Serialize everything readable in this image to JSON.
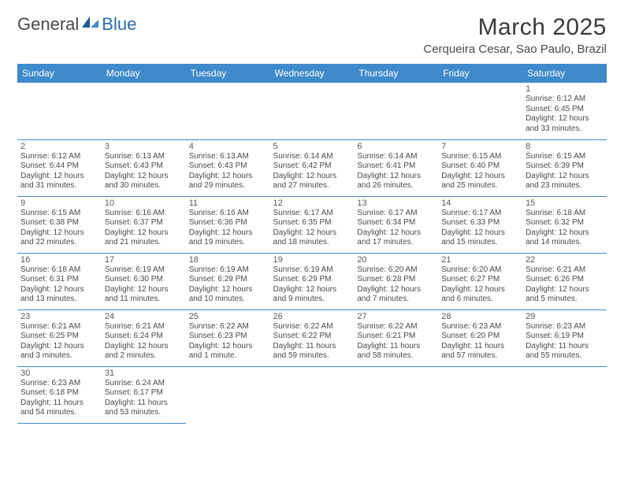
{
  "logo": {
    "general": "General",
    "blue": "Blue"
  },
  "title": "March 2025",
  "location": "Cerqueira Cesar, Sao Paulo, Brazil",
  "colors": {
    "header_bg": "#3f8acb",
    "header_text": "#ffffff",
    "border": "#3f8acb",
    "page_bg": "#ffffff",
    "body_text": "#4a4a4a"
  },
  "typography": {
    "title_fontsize": 30,
    "location_fontsize": 15,
    "header_fontsize": 12,
    "daynum_fontsize": 11,
    "detail_fontsize": 10
  },
  "weekdays": [
    "Sunday",
    "Monday",
    "Tuesday",
    "Wednesday",
    "Thursday",
    "Friday",
    "Saturday"
  ],
  "weeks": [
    [
      null,
      null,
      null,
      null,
      null,
      null,
      {
        "n": "1",
        "sunrise": "Sunrise: 6:12 AM",
        "sunset": "Sunset: 6:45 PM",
        "daylight": "Daylight: 12 hours and 33 minutes."
      }
    ],
    [
      {
        "n": "2",
        "sunrise": "Sunrise: 6:12 AM",
        "sunset": "Sunset: 6:44 PM",
        "daylight": "Daylight: 12 hours and 31 minutes."
      },
      {
        "n": "3",
        "sunrise": "Sunrise: 6:13 AM",
        "sunset": "Sunset: 6:43 PM",
        "daylight": "Daylight: 12 hours and 30 minutes."
      },
      {
        "n": "4",
        "sunrise": "Sunrise: 6:13 AM",
        "sunset": "Sunset: 6:43 PM",
        "daylight": "Daylight: 12 hours and 29 minutes."
      },
      {
        "n": "5",
        "sunrise": "Sunrise: 6:14 AM",
        "sunset": "Sunset: 6:42 PM",
        "daylight": "Daylight: 12 hours and 27 minutes."
      },
      {
        "n": "6",
        "sunrise": "Sunrise: 6:14 AM",
        "sunset": "Sunset: 6:41 PM",
        "daylight": "Daylight: 12 hours and 26 minutes."
      },
      {
        "n": "7",
        "sunrise": "Sunrise: 6:15 AM",
        "sunset": "Sunset: 6:40 PM",
        "daylight": "Daylight: 12 hours and 25 minutes."
      },
      {
        "n": "8",
        "sunrise": "Sunrise: 6:15 AM",
        "sunset": "Sunset: 6:39 PM",
        "daylight": "Daylight: 12 hours and 23 minutes."
      }
    ],
    [
      {
        "n": "9",
        "sunrise": "Sunrise: 6:15 AM",
        "sunset": "Sunset: 6:38 PM",
        "daylight": "Daylight: 12 hours and 22 minutes."
      },
      {
        "n": "10",
        "sunrise": "Sunrise: 6:16 AM",
        "sunset": "Sunset: 6:37 PM",
        "daylight": "Daylight: 12 hours and 21 minutes."
      },
      {
        "n": "11",
        "sunrise": "Sunrise: 6:16 AM",
        "sunset": "Sunset: 6:36 PM",
        "daylight": "Daylight: 12 hours and 19 minutes."
      },
      {
        "n": "12",
        "sunrise": "Sunrise: 6:17 AM",
        "sunset": "Sunset: 6:35 PM",
        "daylight": "Daylight: 12 hours and 18 minutes."
      },
      {
        "n": "13",
        "sunrise": "Sunrise: 6:17 AM",
        "sunset": "Sunset: 6:34 PM",
        "daylight": "Daylight: 12 hours and 17 minutes."
      },
      {
        "n": "14",
        "sunrise": "Sunrise: 6:17 AM",
        "sunset": "Sunset: 6:33 PM",
        "daylight": "Daylight: 12 hours and 15 minutes."
      },
      {
        "n": "15",
        "sunrise": "Sunrise: 6:18 AM",
        "sunset": "Sunset: 6:32 PM",
        "daylight": "Daylight: 12 hours and 14 minutes."
      }
    ],
    [
      {
        "n": "16",
        "sunrise": "Sunrise: 6:18 AM",
        "sunset": "Sunset: 6:31 PM",
        "daylight": "Daylight: 12 hours and 13 minutes."
      },
      {
        "n": "17",
        "sunrise": "Sunrise: 6:19 AM",
        "sunset": "Sunset: 6:30 PM",
        "daylight": "Daylight: 12 hours and 11 minutes."
      },
      {
        "n": "18",
        "sunrise": "Sunrise: 6:19 AM",
        "sunset": "Sunset: 6:29 PM",
        "daylight": "Daylight: 12 hours and 10 minutes."
      },
      {
        "n": "19",
        "sunrise": "Sunrise: 6:19 AM",
        "sunset": "Sunset: 6:29 PM",
        "daylight": "Daylight: 12 hours and 9 minutes."
      },
      {
        "n": "20",
        "sunrise": "Sunrise: 6:20 AM",
        "sunset": "Sunset: 6:28 PM",
        "daylight": "Daylight: 12 hours and 7 minutes."
      },
      {
        "n": "21",
        "sunrise": "Sunrise: 6:20 AM",
        "sunset": "Sunset: 6:27 PM",
        "daylight": "Daylight: 12 hours and 6 minutes."
      },
      {
        "n": "22",
        "sunrise": "Sunrise: 6:21 AM",
        "sunset": "Sunset: 6:26 PM",
        "daylight": "Daylight: 12 hours and 5 minutes."
      }
    ],
    [
      {
        "n": "23",
        "sunrise": "Sunrise: 6:21 AM",
        "sunset": "Sunset: 6:25 PM",
        "daylight": "Daylight: 12 hours and 3 minutes."
      },
      {
        "n": "24",
        "sunrise": "Sunrise: 6:21 AM",
        "sunset": "Sunset: 6:24 PM",
        "daylight": "Daylight: 12 hours and 2 minutes."
      },
      {
        "n": "25",
        "sunrise": "Sunrise: 6:22 AM",
        "sunset": "Sunset: 6:23 PM",
        "daylight": "Daylight: 12 hours and 1 minute."
      },
      {
        "n": "26",
        "sunrise": "Sunrise: 6:22 AM",
        "sunset": "Sunset: 6:22 PM",
        "daylight": "Daylight: 11 hours and 59 minutes."
      },
      {
        "n": "27",
        "sunrise": "Sunrise: 6:22 AM",
        "sunset": "Sunset: 6:21 PM",
        "daylight": "Daylight: 11 hours and 58 minutes."
      },
      {
        "n": "28",
        "sunrise": "Sunrise: 6:23 AM",
        "sunset": "Sunset: 6:20 PM",
        "daylight": "Daylight: 11 hours and 57 minutes."
      },
      {
        "n": "29",
        "sunrise": "Sunrise: 6:23 AM",
        "sunset": "Sunset: 6:19 PM",
        "daylight": "Daylight: 11 hours and 55 minutes."
      }
    ],
    [
      {
        "n": "30",
        "sunrise": "Sunrise: 6:23 AM",
        "sunset": "Sunset: 6:18 PM",
        "daylight": "Daylight: 11 hours and 54 minutes."
      },
      {
        "n": "31",
        "sunrise": "Sunrise: 6:24 AM",
        "sunset": "Sunset: 6:17 PM",
        "daylight": "Daylight: 11 hours and 53 minutes."
      },
      null,
      null,
      null,
      null,
      null
    ]
  ]
}
